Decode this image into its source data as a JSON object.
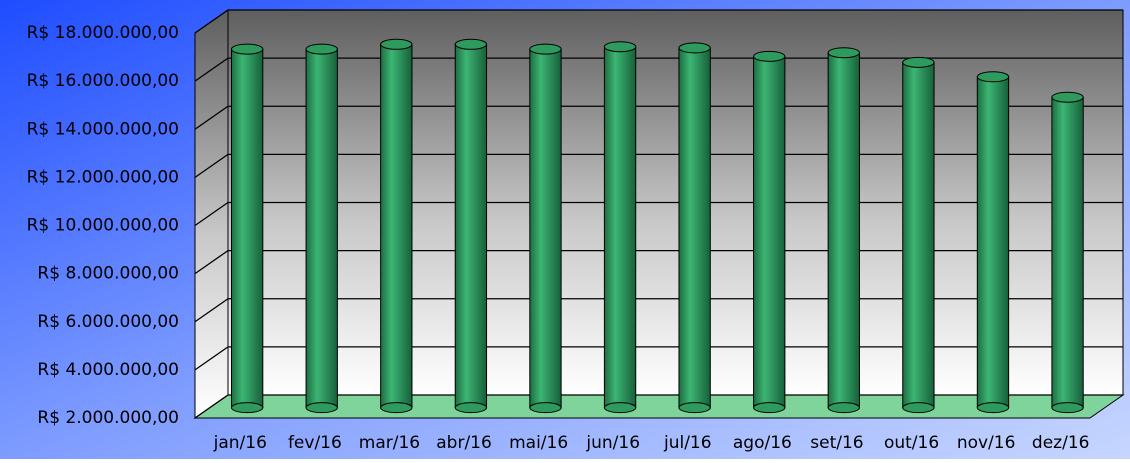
{
  "chart_data": {
    "type": "bar",
    "categories": [
      "jan/16",
      "fev/16",
      "mar/16",
      "abr/16",
      "mai/16",
      "jun/16",
      "jul/16",
      "ago/16",
      "set/16",
      "out/16",
      "nov/16",
      "dez/16"
    ],
    "values": [
      16900000,
      16900000,
      17100000,
      17100000,
      16900000,
      17000000,
      16950000,
      16600000,
      16750000,
      16350000,
      15750000,
      14900000
    ],
    "color": "#2e9a5e",
    "ylim": [
      2000000,
      18000000
    ],
    "yticks": [
      {
        "value": 2000000,
        "label": "R$ 2.000.000,00"
      },
      {
        "value": 4000000,
        "label": "R$ 4.000.000,00"
      },
      {
        "value": 6000000,
        "label": "R$ 6.000.000,00"
      },
      {
        "value": 8000000,
        "label": "R$ 8.000.000,00"
      },
      {
        "value": 10000000,
        "label": "R$ 10.000.000,00"
      },
      {
        "value": 12000000,
        "label": "R$ 12.000.000,00"
      },
      {
        "value": 14000000,
        "label": "R$ 14.000.000,00"
      },
      {
        "value": 16000000,
        "label": "R$ 16.000.000,00"
      },
      {
        "value": 18000000,
        "label": "R$ 18.000.000,00"
      }
    ],
    "grid": true
  }
}
